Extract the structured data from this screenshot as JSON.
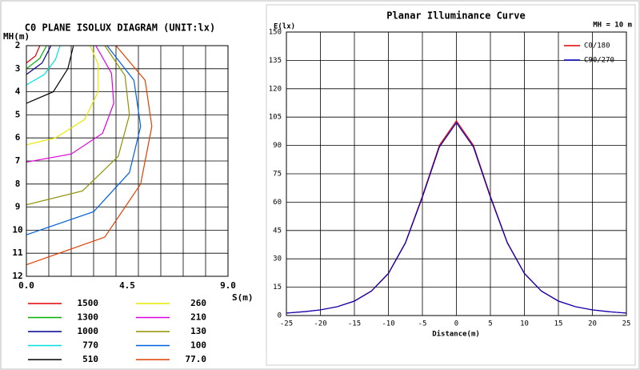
{
  "chart_data": [
    {
      "type": "contour",
      "title": "C0 PLANE ISOLUX DIAGRAM (UNIT:lx)",
      "y_label": "MH(m)",
      "x_label": "S(m)",
      "xlim": [
        0,
        9
      ],
      "xticks": [
        {
          "value": 0,
          "label": "0.0"
        },
        {
          "value": 4.5,
          "label": "4.5"
        },
        {
          "value": 9,
          "label": "9.0"
        }
      ],
      "ylim": [
        12,
        2
      ],
      "yticks": [
        2,
        3,
        4,
        5,
        6,
        7,
        8,
        9,
        10,
        11,
        12
      ],
      "grid": true,
      "series": [
        {
          "name": "1500",
          "color": "#e00000",
          "x": [
            0,
            0.4,
            0.6
          ],
          "values": [
            2.75,
            2.45,
            2
          ]
        },
        {
          "name": "1300",
          "color": "#00b000",
          "x": [
            0,
            0.6,
            0.9
          ],
          "values": [
            3.0,
            2.55,
            2
          ]
        },
        {
          "name": "1000",
          "color": "#000090",
          "x": [
            0,
            0.7,
            1.1
          ],
          "values": [
            3.25,
            2.75,
            2
          ]
        },
        {
          "name": "770",
          "color": "#00e0e0",
          "x": [
            0,
            0.8,
            1.3,
            1.5
          ],
          "values": [
            3.7,
            3.25,
            2.6,
            2
          ]
        },
        {
          "name": "510",
          "color": "#000000",
          "x": [
            0,
            1.2,
            1.85,
            2.1
          ],
          "values": [
            4.5,
            4.0,
            3.0,
            2
          ]
        },
        {
          "name": "260",
          "color": "#e8e800",
          "x": [
            2.85,
            3.2,
            3.2,
            2.6,
            1.3,
            0
          ],
          "values": [
            2,
            2.8,
            4.0,
            5.2,
            6.0,
            6.3
          ]
        },
        {
          "name": "210",
          "color": "#e000e0",
          "x": [
            3.1,
            3.8,
            3.9,
            3.4,
            2.0,
            0
          ],
          "values": [
            2,
            3.2,
            4.5,
            5.8,
            6.7,
            7.05
          ]
        },
        {
          "name": "130",
          "color": "#909000",
          "x": [
            3.5,
            4.4,
            4.6,
            4.1,
            2.5,
            0
          ],
          "values": [
            2,
            3.3,
            5.0,
            6.8,
            8.3,
            8.9
          ]
        },
        {
          "name": "100",
          "color": "#0060e0",
          "x": [
            3.6,
            4.8,
            5.1,
            4.6,
            3.0,
            0
          ],
          "values": [
            2,
            3.5,
            5.5,
            7.5,
            9.2,
            10.2
          ]
        },
        {
          "name": "77.0",
          "color": "#e04000",
          "x": [
            4.0,
            5.3,
            5.6,
            5.1,
            3.5,
            0
          ],
          "values": [
            2,
            3.5,
            5.5,
            8.0,
            10.3,
            11.5
          ]
        }
      ]
    },
    {
      "type": "line",
      "title": "Planar Illuminance Curve",
      "y_label": "E(lx)",
      "x_label": "Distance(m)",
      "annotation": "MH = 10 m",
      "xlim": [
        -25,
        25
      ],
      "xticks": [
        -25,
        -20,
        -15,
        -10,
        -5,
        0,
        5,
        10,
        15,
        20,
        25
      ],
      "ylim": [
        0,
        150
      ],
      "yticks": [
        0,
        15,
        30,
        45,
        60,
        75,
        90,
        105,
        120,
        135,
        150
      ],
      "grid": true,
      "x": [
        -25,
        -22.5,
        -20,
        -17.5,
        -15,
        -12.5,
        -10,
        -7.5,
        -5,
        -2.5,
        0,
        2.5,
        5,
        7.5,
        10,
        12.5,
        15,
        17.5,
        20,
        22.5,
        25
      ],
      "series": [
        {
          "name": "C0/180",
          "color": "#e00000",
          "values": [
            1.3,
            2.0,
            3.0,
            4.7,
            7.7,
            13.0,
            22.4,
            38.6,
            63.2,
            90.1,
            103,
            90.1,
            63.2,
            38.6,
            22.4,
            13.0,
            7.7,
            4.7,
            3.0,
            2.0,
            1.3
          ]
        },
        {
          "name": "C90/270",
          "color": "#0000c0",
          "values": [
            1.3,
            2.0,
            3.0,
            4.7,
            7.6,
            12.9,
            22.2,
            38.3,
            62.6,
            89.2,
            102,
            89.2,
            62.6,
            38.3,
            22.2,
            12.9,
            7.6,
            4.7,
            3.0,
            2.0,
            1.3
          ]
        }
      ]
    }
  ]
}
